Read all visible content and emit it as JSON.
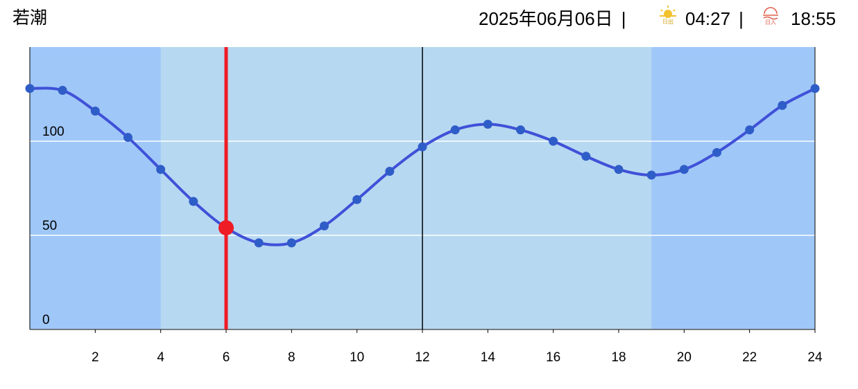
{
  "header": {
    "title": "若潮",
    "date": "2025年06月06日",
    "separator": "|",
    "sunrise_label": "日出",
    "sunrise": "04:27",
    "sunset_label": "日入",
    "sunset": "18:55"
  },
  "chart_data": {
    "type": "line",
    "x": [
      0,
      1,
      2,
      3,
      4,
      5,
      6,
      7,
      8,
      9,
      10,
      11,
      12,
      13,
      14,
      15,
      16,
      17,
      18,
      19,
      20,
      21,
      22,
      23,
      24
    ],
    "series": [
      {
        "color": "#3f51d8",
        "values": [
          128,
          127,
          116,
          102,
          85,
          68,
          54,
          46,
          46,
          55,
          69,
          84,
          97,
          106,
          109,
          106,
          100,
          92,
          85,
          82,
          85,
          94,
          106,
          119,
          128
        ]
      }
    ],
    "xlim": [
      0,
      24
    ],
    "xticks": [
      2,
      4,
      6,
      8,
      10,
      12,
      14,
      16,
      18,
      20,
      22,
      24
    ],
    "ylim": [
      0,
      150
    ],
    "yticks": [
      0,
      50,
      100
    ],
    "grid": true,
    "daylight": [
      4,
      19
    ],
    "current_x": 6,
    "noon_x": 12,
    "current_color": "#ee1c25"
  }
}
